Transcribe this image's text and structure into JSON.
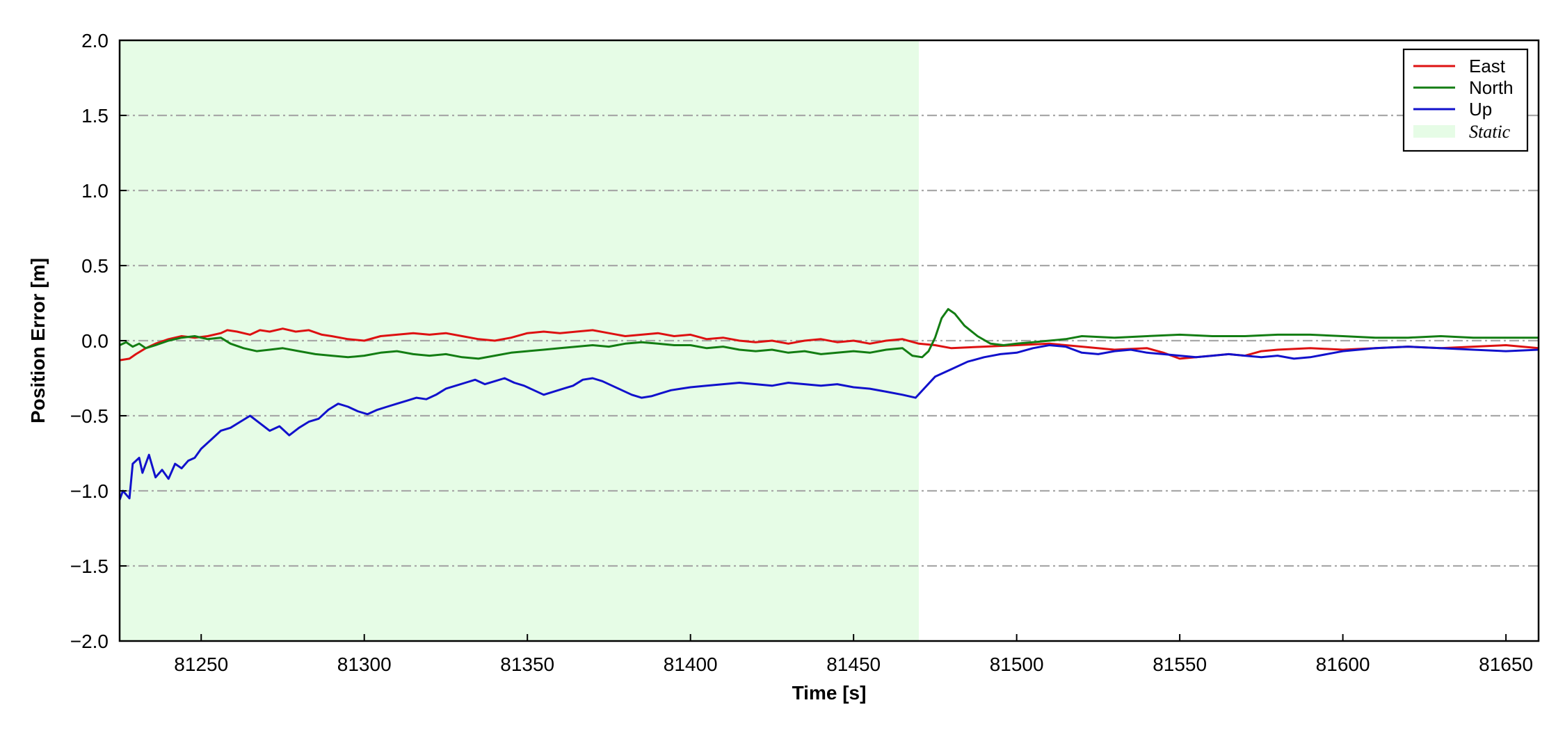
{
  "chart_data": {
    "type": "line",
    "xlabel": "Time [s]",
    "ylabel": "Position Error [m]",
    "xlim": [
      81225,
      81660
    ],
    "ylim": [
      -2.0,
      2.0
    ],
    "xticks": [
      81250,
      81300,
      81350,
      81400,
      81450,
      81500,
      81550,
      81600,
      81650
    ],
    "xtick_labels": [
      "81250",
      "81300",
      "81350",
      "81400",
      "81450",
      "81500",
      "81550",
      "81600",
      "81650"
    ],
    "yticks": [
      -2.0,
      -1.5,
      -1.0,
      -0.5,
      0.0,
      0.5,
      1.0,
      1.5,
      2.0
    ],
    "ytick_labels": [
      "−2.0",
      "−1.5",
      "−1.0",
      "−0.5",
      "0.0",
      "0.5",
      "1.0",
      "1.5",
      "2.0"
    ],
    "grid": "horizontal dash-dot",
    "legend_position": "top-right",
    "shaded_region": {
      "label": "Static",
      "x": [
        81225,
        81470
      ],
      "color": "#e6fce6"
    },
    "series": [
      {
        "name": "East",
        "color": "#dd1111",
        "x": [
          81225,
          81228,
          81230,
          81233,
          81236,
          81240,
          81244,
          81248,
          81252,
          81256,
          81258,
          81261,
          81265,
          81268,
          81271,
          81275,
          81279,
          81283,
          81287,
          81290,
          81295,
          81300,
          81305,
          81310,
          81315,
          81320,
          81325,
          81330,
          81335,
          81340,
          81345,
          81350,
          81355,
          81360,
          81365,
          81370,
          81375,
          81380,
          81385,
          81390,
          81395,
          81400,
          81405,
          81410,
          81415,
          81420,
          81425,
          81430,
          81435,
          81440,
          81445,
          81450,
          81455,
          81460,
          81465,
          81470,
          81475,
          81480,
          81490,
          81500,
          81510,
          81520,
          81530,
          81540,
          81545,
          81550,
          81555,
          81560,
          81565,
          81570,
          81575,
          81580,
          81590,
          81600,
          81610,
          81620,
          81630,
          81640,
          81650,
          81660
        ],
        "y": [
          -0.13,
          -0.12,
          -0.09,
          -0.05,
          -0.02,
          0.01,
          0.03,
          0.02,
          0.03,
          0.05,
          0.07,
          0.06,
          0.04,
          0.07,
          0.06,
          0.08,
          0.06,
          0.07,
          0.04,
          0.03,
          0.01,
          0.0,
          0.03,
          0.04,
          0.05,
          0.04,
          0.05,
          0.03,
          0.01,
          0.0,
          0.02,
          0.05,
          0.06,
          0.05,
          0.06,
          0.07,
          0.05,
          0.03,
          0.04,
          0.05,
          0.03,
          0.04,
          0.01,
          0.02,
          0.0,
          -0.01,
          0.0,
          -0.02,
          0.0,
          0.01,
          -0.01,
          0.0,
          -0.02,
          0.0,
          0.01,
          -0.02,
          -0.03,
          -0.05,
          -0.04,
          -0.03,
          -0.02,
          -0.04,
          -0.06,
          -0.05,
          -0.08,
          -0.12,
          -0.11,
          -0.1,
          -0.09,
          -0.1,
          -0.07,
          -0.06,
          -0.05,
          -0.06,
          -0.05,
          -0.04,
          -0.05,
          -0.04,
          -0.03,
          -0.05
        ]
      },
      {
        "name": "North",
        "color": "#137d13",
        "x": [
          81225,
          81227,
          81229,
          81231,
          81233,
          81236,
          81240,
          81244,
          81248,
          81252,
          81256,
          81259,
          81263,
          81267,
          81271,
          81275,
          81280,
          81285,
          81290,
          81295,
          81300,
          81305,
          81310,
          81315,
          81320,
          81325,
          81330,
          81335,
          81340,
          81345,
          81350,
          81355,
          81360,
          81365,
          81370,
          81375,
          81380,
          81385,
          81390,
          81395,
          81400,
          81405,
          81410,
          81415,
          81420,
          81425,
          81430,
          81435,
          81440,
          81445,
          81450,
          81455,
          81460,
          81465,
          81468,
          81471,
          81473,
          81475,
          81477,
          81479,
          81481,
          81484,
          81488,
          81492,
          81496,
          81500,
          81505,
          81510,
          81515,
          81520,
          81530,
          81540,
          81550,
          81560,
          81570,
          81580,
          81590,
          81600,
          81610,
          81620,
          81630,
          81640,
          81650,
          81660
        ],
        "y": [
          -0.03,
          -0.01,
          -0.04,
          -0.02,
          -0.05,
          -0.03,
          0.0,
          0.02,
          0.03,
          0.01,
          0.02,
          -0.02,
          -0.05,
          -0.07,
          -0.06,
          -0.05,
          -0.07,
          -0.09,
          -0.1,
          -0.11,
          -0.1,
          -0.08,
          -0.07,
          -0.09,
          -0.1,
          -0.09,
          -0.11,
          -0.12,
          -0.1,
          -0.08,
          -0.07,
          -0.06,
          -0.05,
          -0.04,
          -0.03,
          -0.04,
          -0.02,
          -0.01,
          -0.02,
          -0.03,
          -0.03,
          -0.05,
          -0.04,
          -0.06,
          -0.07,
          -0.06,
          -0.08,
          -0.07,
          -0.09,
          -0.08,
          -0.07,
          -0.08,
          -0.06,
          -0.05,
          -0.1,
          -0.11,
          -0.07,
          0.02,
          0.15,
          0.21,
          0.18,
          0.1,
          0.03,
          -0.02,
          -0.03,
          -0.02,
          -0.01,
          0.0,
          0.01,
          0.03,
          0.02,
          0.03,
          0.04,
          0.03,
          0.03,
          0.04,
          0.04,
          0.03,
          0.02,
          0.02,
          0.03,
          0.02,
          0.02,
          0.02
        ]
      },
      {
        "name": "Up",
        "color": "#1111cc",
        "x": [
          81225,
          81226,
          81228,
          81229,
          81231,
          81232,
          81234,
          81236,
          81238,
          81240,
          81242,
          81244,
          81246,
          81248,
          81250,
          81253,
          81256,
          81259,
          81262,
          81265,
          81268,
          81271,
          81274,
          81277,
          81280,
          81283,
          81286,
          81289,
          81292,
          81295,
          81298,
          81301,
          81304,
          81307,
          81310,
          81313,
          81316,
          81319,
          81322,
          81325,
          81328,
          81331,
          81334,
          81337,
          81340,
          81343,
          81346,
          81349,
          81352,
          81355,
          81358,
          81361,
          81364,
          81367,
          81370,
          81373,
          81376,
          81379,
          81382,
          81385,
          81388,
          81391,
          81394,
          81397,
          81400,
          81405,
          81410,
          81415,
          81420,
          81425,
          81430,
          81435,
          81440,
          81445,
          81450,
          81455,
          81460,
          81465,
          81469,
          81472,
          81475,
          81480,
          81485,
          81490,
          81495,
          81500,
          81505,
          81510,
          81515,
          81520,
          81525,
          81530,
          81535,
          81540,
          81545,
          81550,
          81555,
          81560,
          81565,
          81570,
          81575,
          81580,
          81585,
          81590,
          81600,
          81610,
          81620,
          81630,
          81640,
          81650,
          81660
        ],
        "y": [
          -1.06,
          -1.0,
          -1.05,
          -0.82,
          -0.78,
          -0.88,
          -0.76,
          -0.91,
          -0.86,
          -0.92,
          -0.82,
          -0.85,
          -0.8,
          -0.78,
          -0.72,
          -0.66,
          -0.6,
          -0.58,
          -0.54,
          -0.5,
          -0.55,
          -0.6,
          -0.57,
          -0.63,
          -0.58,
          -0.54,
          -0.52,
          -0.46,
          -0.42,
          -0.44,
          -0.47,
          -0.49,
          -0.46,
          -0.44,
          -0.42,
          -0.4,
          -0.38,
          -0.39,
          -0.36,
          -0.32,
          -0.3,
          -0.28,
          -0.26,
          -0.29,
          -0.27,
          -0.25,
          -0.28,
          -0.3,
          -0.33,
          -0.36,
          -0.34,
          -0.32,
          -0.3,
          -0.26,
          -0.25,
          -0.27,
          -0.3,
          -0.33,
          -0.36,
          -0.38,
          -0.37,
          -0.35,
          -0.33,
          -0.32,
          -0.31,
          -0.3,
          -0.29,
          -0.28,
          -0.29,
          -0.3,
          -0.28,
          -0.29,
          -0.3,
          -0.29,
          -0.31,
          -0.32,
          -0.34,
          -0.36,
          -0.38,
          -0.31,
          -0.24,
          -0.19,
          -0.14,
          -0.11,
          -0.09,
          -0.08,
          -0.05,
          -0.03,
          -0.04,
          -0.08,
          -0.09,
          -0.07,
          -0.06,
          -0.08,
          -0.09,
          -0.1,
          -0.11,
          -0.1,
          -0.09,
          -0.1,
          -0.11,
          -0.1,
          -0.12,
          -0.11,
          -0.07,
          -0.05,
          -0.04,
          -0.05,
          -0.06,
          -0.07,
          -0.06
        ]
      }
    ]
  }
}
